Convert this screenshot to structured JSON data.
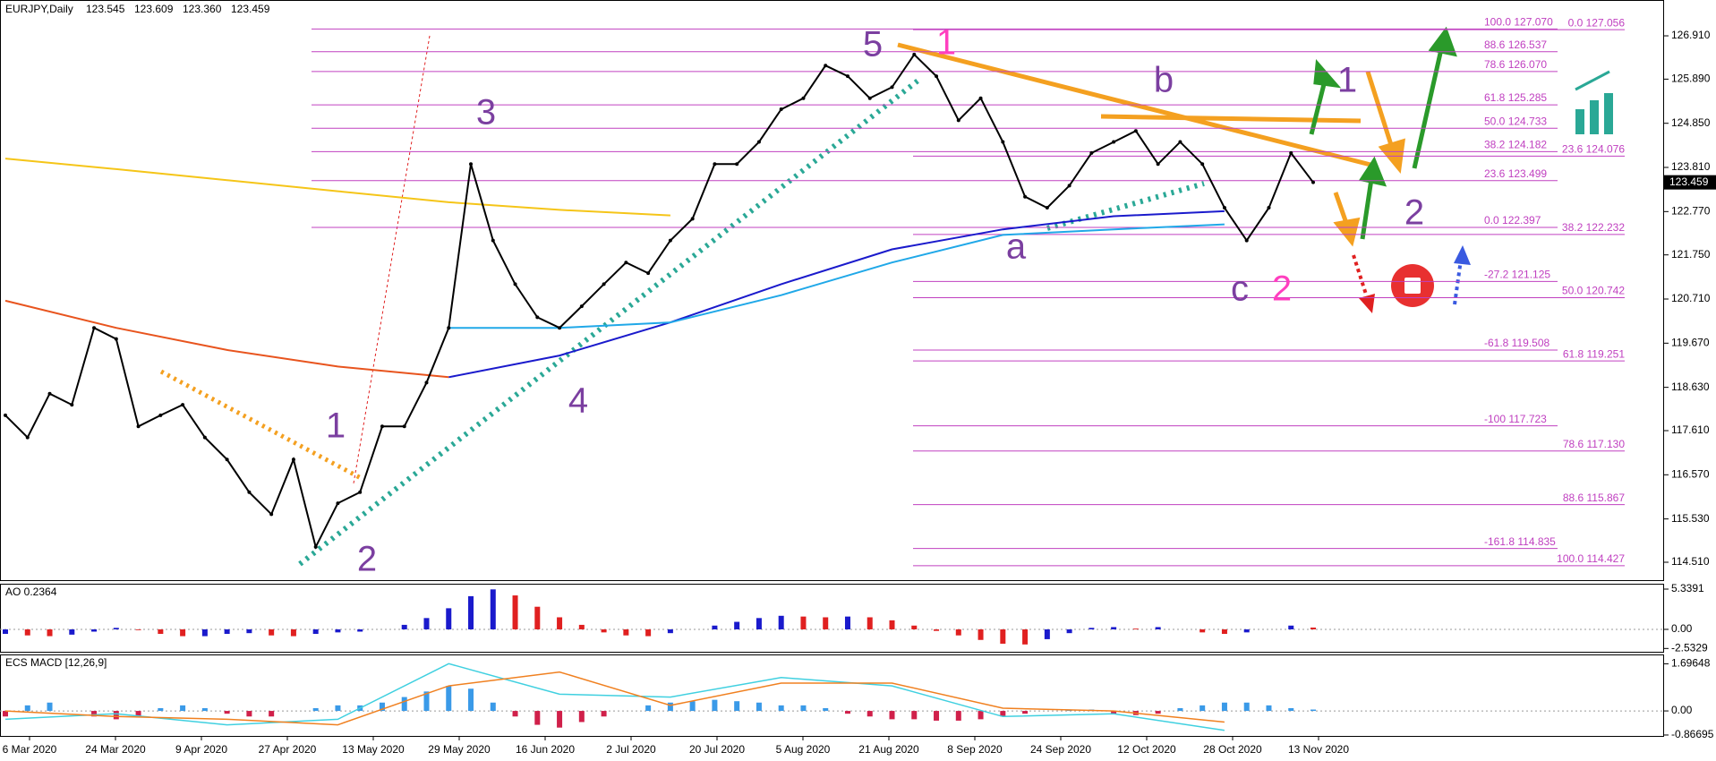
{
  "chart_data": [
    {
      "type": "line",
      "title": "EURJPY,Daily",
      "ohlc": [
        "123.545",
        "123.609",
        "123.360",
        "123.459"
      ],
      "color": "#000000",
      "values": [
        117.97,
        117.45,
        118.48,
        118.22,
        120.03,
        119.77,
        117.71,
        117.97,
        118.22,
        117.45,
        116.93,
        116.16,
        115.64,
        116.93,
        114.87,
        115.9,
        116.16,
        117.71,
        117.71,
        118.74,
        120.03,
        123.89,
        122.09,
        121.06,
        120.28,
        120.03,
        120.54,
        121.06,
        121.57,
        121.32,
        122.09,
        122.6,
        123.89,
        123.89,
        124.41,
        125.18,
        125.44,
        126.21,
        125.96,
        125.44,
        125.7,
        126.47,
        125.96,
        124.92,
        125.44,
        124.41,
        123.12,
        122.86,
        123.38,
        124.15,
        124.41,
        124.67,
        123.89,
        124.41,
        123.89,
        122.86,
        122.09,
        122.86,
        124.15,
        123.459
      ],
      "moving_averages": [
        {
          "color": "#f5c518",
          "values": [
            124.02,
            123.77,
            123.51,
            123.25,
            122.99,
            122.81,
            122.68,
            null,
            null,
            null,
            null,
            null
          ]
        },
        {
          "color": "#e8541e",
          "values": [
            120.67,
            120.03,
            119.51,
            119.12,
            118.87,
            null,
            null,
            null,
            null,
            null,
            null,
            null
          ]
        },
        {
          "color": "#1a1acc",
          "values": [
            null,
            null,
            null,
            null,
            118.87,
            119.38,
            120.16,
            121.06,
            121.88,
            122.35,
            122.66,
            122.78
          ]
        },
        {
          "color": "#20a8e8",
          "values": [
            null,
            null,
            null,
            null,
            120.03,
            120.03,
            120.16,
            120.8,
            121.57,
            122.22,
            122.35,
            122.47
          ]
        }
      ],
      "xticks": [
        "6 Mar 2020",
        "24 Mar 2020",
        "9 Apr 2020",
        "27 Apr 2020",
        "13 May 2020",
        "29 May 2020",
        "16 Jun 2020",
        "2 Jul 2020",
        "20 Jul 2020",
        "5 Aug 2020",
        "21 Aug 2020",
        "8 Sep 2020",
        "24 Sep 2020",
        "12 Oct 2020",
        "28 Oct 2020",
        "13 Nov 2020"
      ],
      "ylim": [
        114.088,
        127.754
      ],
      "yticks": [
        {
          "value": 126.91,
          "label": "126.910"
        },
        {
          "value": 125.89,
          "label": "125.890"
        },
        {
          "value": 124.85,
          "label": "124.850"
        },
        {
          "value": 123.81,
          "label": "123.810"
        },
        {
          "value": 122.77,
          "label": "122.770"
        },
        {
          "value": 121.75,
          "label": "121.750"
        },
        {
          "value": 120.71,
          "label": "120.710"
        },
        {
          "value": 119.67,
          "label": "119.670"
        },
        {
          "value": 118.63,
          "label": "118.630"
        },
        {
          "value": 117.61,
          "label": "117.610"
        },
        {
          "value": 116.57,
          "label": "116.570"
        },
        {
          "value": 115.53,
          "label": "115.530"
        },
        {
          "value": 114.51,
          "label": "114.510"
        }
      ],
      "last_price": 123.459,
      "fib_left": [
        {
          "price": 127.07,
          "label": "100.0 127.070"
        },
        {
          "price": 126.537,
          "label": "88.6 126.537"
        },
        {
          "price": 126.07,
          "label": "78.6 126.070"
        },
        {
          "price": 125.285,
          "label": "61.8 125.285"
        },
        {
          "price": 124.733,
          "label": "50.0 124.733"
        },
        {
          "price": 124.182,
          "label": "38.2 124.182"
        },
        {
          "price": 123.499,
          "label": "23.6 123.499"
        },
        {
          "price": 122.397,
          "label": "0.0 122.397"
        },
        {
          "price": 121.125,
          "label": "-27.2 121.125"
        },
        {
          "price": 119.508,
          "label": "-61.8 119.508"
        },
        {
          "price": 117.723,
          "label": "-100  117.723"
        },
        {
          "price": 114.835,
          "label": "-161.8 114.835"
        }
      ],
      "fib_right": [
        {
          "price": 127.056,
          "label": "0.0 127.056"
        },
        {
          "price": 124.076,
          "label": "23.6 124.076"
        },
        {
          "price": 122.232,
          "label": "38.2 122.232"
        },
        {
          "price": 120.742,
          "label": "50.0 120.742"
        },
        {
          "price": 119.251,
          "label": "61.8 119.251"
        },
        {
          "price": 117.13,
          "label": "78.6 117.130"
        },
        {
          "price": 115.867,
          "label": "88.6 115.867"
        },
        {
          "price": 114.427,
          "label": "100.0 114.427"
        }
      ],
      "wave_labels": [
        {
          "text": "5",
          "color": "#7b3fa0"
        },
        {
          "text": "1",
          "color": "#ff3fbf"
        },
        {
          "text": "3",
          "color": "#7b3fa0"
        },
        {
          "text": "1",
          "color": "#7b3fa0"
        },
        {
          "text": "2",
          "color": "#7b3fa0"
        },
        {
          "text": "4",
          "color": "#7b3fa0"
        },
        {
          "text": "a",
          "color": "#7b3fa0"
        },
        {
          "text": "b",
          "color": "#7b3fa0"
        },
        {
          "text": "c",
          "color": "#7b3fa0"
        },
        {
          "text": "2",
          "color": "#ff3fbf"
        },
        {
          "text": "1",
          "color": "#7b3fa0"
        },
        {
          "text": "2",
          "color": "#7b3fa0"
        }
      ]
    },
    {
      "type": "histogram",
      "title": "AO 0.2364",
      "values": [
        -0.6,
        -0.8,
        -0.9,
        -0.7,
        -0.3,
        0.2,
        -0.1,
        -0.6,
        -0.9,
        -0.9,
        -0.6,
        -0.5,
        -0.8,
        -0.9,
        -0.6,
        -0.4,
        -0.3,
        0.0,
        0.6,
        1.5,
        2.8,
        4.4,
        5.3,
        4.5,
        3.0,
        1.6,
        0.6,
        -0.4,
        -0.8,
        -0.9,
        -0.5,
        0.0,
        0.5,
        1.0,
        1.5,
        1.8,
        1.7,
        1.6,
        1.7,
        1.6,
        1.2,
        0.5,
        -0.2,
        -0.8,
        -1.4,
        -1.9,
        -2.0,
        -1.3,
        -0.5,
        0.2,
        0.3,
        0.1,
        0.3,
        0.0,
        -0.4,
        -0.6,
        -0.4,
        0.0,
        0.5,
        0.24
      ],
      "ylim": [
        -2.97,
        6.05
      ],
      "yticks": [
        5.3391,
        {
          "value": 0,
          "label": "0.00"
        },
        -2.5329
      ]
    },
    {
      "type": "macd",
      "title": "ECS MACD [12,26,9]",
      "values": [
        -0.2,
        0.2,
        0.3,
        0.0,
        -0.2,
        -0.3,
        -0.2,
        0.1,
        0.2,
        0.1,
        -0.1,
        -0.2,
        -0.2,
        0.0,
        0.1,
        0.2,
        0.2,
        0.3,
        0.5,
        0.7,
        0.9,
        0.8,
        0.3,
        -0.2,
        -0.5,
        -0.6,
        -0.4,
        -0.2,
        0.0,
        0.2,
        0.3,
        0.35,
        0.4,
        0.35,
        0.3,
        0.2,
        0.2,
        0.1,
        -0.1,
        -0.2,
        -0.3,
        -0.3,
        -0.35,
        -0.35,
        -0.3,
        -0.2,
        -0.1,
        0.0,
        0.05,
        0.05,
        -0.1,
        -0.15,
        -0.1,
        0.1,
        0.2,
        0.3,
        0.3,
        0.2,
        0.1,
        0.05
      ],
      "macd": [
        -0.3,
        -0.1,
        -0.5,
        -0.3,
        1.7,
        0.6,
        0.5,
        1.2,
        0.9,
        -0.2,
        -0.1,
        -0.7
      ],
      "signal": [
        0.0,
        -0.2,
        -0.3,
        -0.5,
        0.9,
        1.4,
        0.2,
        1.0,
        1.0,
        0.1,
        0.0,
        -0.4
      ],
      "ylim": [
        -0.9,
        2.0
      ],
      "yticks": [
        1.69648,
        {
          "value": 0,
          "label": "0.00"
        },
        -0.86695
      ]
    }
  ]
}
